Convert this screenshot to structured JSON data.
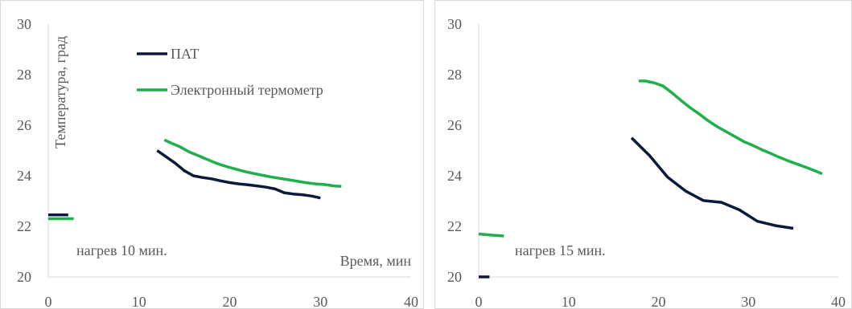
{
  "chart_data": [
    {
      "type": "line",
      "ylabel": "Температура, град",
      "xlabel": "Время, мин",
      "annotation": "нагрев 10 мин.",
      "xlim": [
        0,
        40
      ],
      "ylim": [
        20,
        30
      ],
      "xticks": [
        0,
        10,
        20,
        30,
        40
      ],
      "yticks": [
        20,
        22,
        24,
        26,
        28,
        30
      ],
      "grid": false,
      "legend_position": "top-left",
      "series": [
        {
          "name": "ПАТ",
          "color": "#0b1a3c",
          "segments": [
            [
              [
                0,
                22.45
              ],
              [
                2.2,
                22.45
              ]
            ],
            [
              [
                12,
                25.0
              ],
              [
                13,
                24.75
              ],
              [
                14,
                24.5
              ],
              [
                15,
                24.2
              ],
              [
                16,
                24.0
              ],
              [
                17,
                23.93
              ],
              [
                18,
                23.88
              ],
              [
                19,
                23.8
              ],
              [
                20,
                23.73
              ],
              [
                21,
                23.68
              ],
              [
                22,
                23.64
              ],
              [
                23,
                23.6
              ],
              [
                24,
                23.55
              ],
              [
                25,
                23.48
              ],
              [
                26,
                23.33
              ],
              [
                27,
                23.28
              ],
              [
                28,
                23.25
              ],
              [
                29,
                23.2
              ],
              [
                30,
                23.12
              ]
            ]
          ]
        },
        {
          "name": "Электронный термометр",
          "color": "#1db04b",
          "segments": [
            [
              [
                0,
                22.3
              ],
              [
                2.8,
                22.3
              ]
            ],
            [
              [
                12.8,
                25.42
              ],
              [
                13.5,
                25.3
              ],
              [
                14.5,
                25.15
              ],
              [
                15.5,
                24.95
              ],
              [
                16.5,
                24.8
              ],
              [
                17.5,
                24.65
              ],
              [
                18.5,
                24.5
              ],
              [
                19.5,
                24.38
              ],
              [
                20.5,
                24.28
              ],
              [
                21.5,
                24.18
              ],
              [
                22.5,
                24.1
              ],
              [
                23.5,
                24.03
              ],
              [
                24.5,
                23.96
              ],
              [
                25.5,
                23.9
              ],
              [
                26.5,
                23.84
              ],
              [
                27.5,
                23.78
              ],
              [
                28.5,
                23.72
              ],
              [
                29.5,
                23.68
              ],
              [
                30.5,
                23.65
              ],
              [
                31.5,
                23.6
              ],
              [
                32.3,
                23.58
              ]
            ]
          ]
        }
      ]
    },
    {
      "type": "line",
      "annotation": "нагрев 15 мин.",
      "xlim": [
        0,
        40
      ],
      "ylim": [
        20,
        30
      ],
      "xticks": [
        0,
        10,
        20,
        30,
        40
      ],
      "yticks": [
        20,
        22,
        24,
        26,
        28,
        30
      ],
      "grid": false,
      "series": [
        {
          "name": "ПАТ",
          "color": "#0b1a3c",
          "segments": [
            [
              [
                0,
                20.0
              ],
              [
                1.2,
                20.0
              ]
            ],
            [
              [
                17,
                25.5
              ],
              [
                19,
                24.8
              ],
              [
                21,
                23.95
              ],
              [
                23,
                23.4
              ],
              [
                25,
                23.02
              ],
              [
                27,
                22.95
              ],
              [
                29,
                22.65
              ],
              [
                31,
                22.2
              ],
              [
                33,
                22.03
              ],
              [
                35,
                21.92
              ]
            ]
          ]
        },
        {
          "name": "Электронный термометр",
          "color": "#1db04b",
          "segments": [
            [
              [
                0,
                21.7
              ],
              [
                1.5,
                21.65
              ],
              [
                2.8,
                21.62
              ]
            ],
            [
              [
                17.8,
                27.75
              ],
              [
                18.5,
                27.75
              ],
              [
                19.5,
                27.68
              ],
              [
                20.5,
                27.55
              ],
              [
                21.5,
                27.28
              ],
              [
                22.5,
                26.98
              ],
              [
                23.5,
                26.7
              ],
              [
                24.5,
                26.45
              ],
              [
                25.5,
                26.18
              ],
              [
                26.5,
                25.95
              ],
              [
                27.5,
                25.75
              ],
              [
                28.5,
                25.55
              ],
              [
                29.5,
                25.35
              ],
              [
                30.5,
                25.2
              ],
              [
                31.5,
                25.03
              ],
              [
                32.5,
                24.88
              ],
              [
                33.5,
                24.72
              ],
              [
                34.5,
                24.58
              ],
              [
                35.5,
                24.45
              ],
              [
                36.5,
                24.32
              ],
              [
                37.5,
                24.18
              ],
              [
                38.2,
                24.08
              ]
            ]
          ]
        }
      ]
    }
  ]
}
